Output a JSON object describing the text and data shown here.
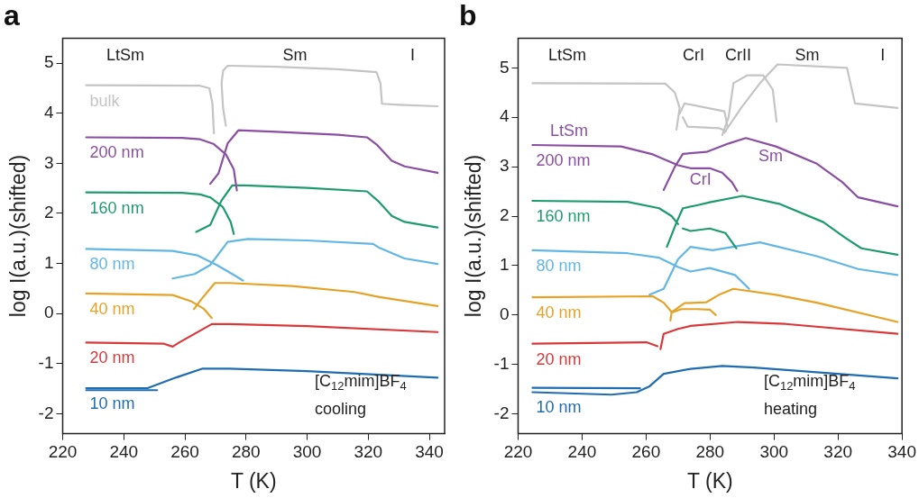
{
  "chart_data": [
    {
      "type": "line",
      "title": "a",
      "xlabel": "T (K)",
      "ylabel": "log I(a.u.)(shifted)",
      "xlim": [
        220,
        345
      ],
      "xticks": [
        220,
        240,
        260,
        280,
        300,
        320,
        340
      ],
      "ylim": [
        -2.4,
        5.5
      ],
      "yticks": [
        -2,
        -1,
        0,
        1,
        2,
        3,
        4,
        5
      ],
      "grid": false,
      "legend": false,
      "marker": "none",
      "line_style": "solid",
      "annotations": [
        "LtSm",
        "Sm",
        "I",
        "[C$_{12}$mim]BF$_{4}$",
        "cooling"
      ],
      "series": [
        {
          "name": "bulk",
          "color": "#c4c4c4",
          "x": [
            227.7,
            265,
            268,
            269,
            269.5
          ],
          "values": [
            4.56,
            4.55,
            4.5,
            4.2,
            3.6
          ]
        },
        {
          "color": "#c4c4c4",
          "x": [
            273.4,
            272.5,
            272,
            272.5,
            274,
            290,
            310,
            322.7,
            324,
            324.5,
            330,
            342.7
          ],
          "values": [
            3.75,
            4.1,
            4.6,
            4.85,
            4.95,
            4.93,
            4.88,
            4.82,
            4.6,
            4.19,
            4.17,
            4.14
          ]
        },
        {
          "name": "200 nm",
          "color": "#8a4fa3",
          "x": [
            227.7,
            259.1,
            265,
            269.3,
            273.4,
            276,
            277
          ],
          "values": [
            3.52,
            3.51,
            3.48,
            3.39,
            3.18,
            2.88,
            2.46
          ]
        },
        {
          "color": "#8a4fa3",
          "x": [
            268.3,
            271,
            274,
            277.5,
            290,
            310,
            319.6,
            322.7,
            327.7,
            331.9,
            342.7
          ],
          "values": [
            2.59,
            2.8,
            3.4,
            3.66,
            3.63,
            3.57,
            3.52,
            3.38,
            3.05,
            2.94,
            2.81
          ]
        },
        {
          "name": "160 nm",
          "color": "#1e9b6e",
          "x": [
            227.7,
            259.1,
            265,
            268.3,
            272.4,
            275,
            276
          ],
          "values": [
            2.42,
            2.41,
            2.38,
            2.32,
            2.13,
            1.83,
            1.59
          ]
        },
        {
          "color": "#1e9b6e",
          "x": [
            263.7,
            268.3,
            271.9,
            275.5,
            279.6,
            300,
            319.6,
            323.2,
            327.7,
            331.9,
            342.7
          ],
          "values": [
            1.63,
            1.77,
            2.25,
            2.56,
            2.56,
            2.51,
            2.44,
            2.25,
            1.95,
            1.83,
            1.72
          ]
        },
        {
          "name": "80 nm",
          "color": "#62b6e3",
          "x": [
            227.7,
            256,
            264.2,
            270.4,
            275.5,
            279
          ],
          "values": [
            1.29,
            1.25,
            1.16,
            0.97,
            0.79,
            0.66
          ]
        },
        {
          "color": "#62b6e3",
          "x": [
            256,
            263.2,
            268.3,
            274,
            280.6,
            300,
            321.6,
            323.7,
            331.9,
            342.7
          ],
          "values": [
            0.7,
            0.79,
            0.97,
            1.43,
            1.49,
            1.46,
            1.39,
            1.31,
            1.1,
            0.99
          ]
        },
        {
          "name": "40 nm",
          "color": "#e5a227",
          "x": [
            227.7,
            256,
            262.2,
            266.3,
            268.8
          ],
          "values": [
            0.4,
            0.37,
            0.24,
            0.09,
            -0.09
          ]
        },
        {
          "color": "#e5a227",
          "x": [
            263,
            265.2,
            269.8,
            274.5,
            295,
            315.5,
            323.7,
            342.7
          ],
          "values": [
            0.09,
            0.27,
            0.61,
            0.61,
            0.55,
            0.43,
            0.33,
            0.15
          ]
        },
        {
          "name": "20 nm",
          "color": "#d8383a",
          "x": [
            227.7,
            252.9,
            256,
            258.1,
            268.8,
            274.5,
            300,
            342.7
          ],
          "values": [
            -0.58,
            -0.6,
            -0.66,
            -0.58,
            -0.21,
            -0.21,
            -0.25,
            -0.37
          ]
        },
        {
          "name": "10 nm",
          "color": "#1f6db0",
          "x": [
            227.7,
            247.8,
            257,
            265.8,
            274.5,
            300,
            342.7
          ],
          "values": [
            -1.49,
            -1.49,
            -1.28,
            -1.1,
            -1.1,
            -1.15,
            -1.28
          ]
        },
        {
          "color": "#1f6db0",
          "x": [
            227.7,
            250.9
          ],
          "values": [
            -1.53,
            -1.53
          ]
        }
      ]
    },
    {
      "type": "line",
      "title": "b",
      "xlabel": "T (K)",
      "ylabel": "log I(a.u.)(shifted)",
      "xlim": [
        220,
        340
      ],
      "xticks": [
        220,
        240,
        260,
        280,
        300,
        320,
        340
      ],
      "ylim": [
        -2.4,
        5.6
      ],
      "yticks": [
        -2,
        -1,
        0,
        1,
        2,
        3,
        4,
        5
      ],
      "grid": false,
      "legend": false,
      "marker": "none",
      "line_style": "solid",
      "annotations": [
        "LtSm",
        "CrI",
        "CrII",
        "Sm",
        "I",
        "LtSm",
        "CrI",
        "Sm",
        "[C$_{12}$mim]BF$_{4}$",
        "heating"
      ],
      "series": [
        {
          "color": "#c4c4c4",
          "x": [
            224.5,
            266,
            269,
            270.5,
            269.5
          ],
          "values": [
            4.69,
            4.68,
            4.5,
            4.19,
            3.75
          ]
        },
        {
          "color": "#c4c4c4",
          "x": [
            270.5,
            272,
            284.5,
            285.5
          ],
          "values": [
            4.07,
            4.28,
            4.12,
            3.8
          ]
        },
        {
          "color": "#c4c4c4",
          "x": [
            271.5,
            273,
            282.8,
            285
          ],
          "values": [
            4.0,
            3.81,
            3.78,
            3.72
          ]
        },
        {
          "color": "#c4c4c4",
          "x": [
            283.8,
            285.8,
            287.3,
            291.7,
            296.6,
            299.6,
            300.8
          ],
          "values": [
            3.64,
            4.0,
            4.69,
            4.85,
            4.85,
            4.56,
            3.91
          ]
        },
        {
          "color": "#c4c4c4",
          "x": [
            284.5,
            289.7,
            295.6,
            301.1,
            322.8,
            325.3,
            338.6
          ],
          "values": [
            3.69,
            4.19,
            4.69,
            5.07,
            5.0,
            4.28,
            4.19
          ]
        },
        {
          "name": "200 nm",
          "color": "#8a4fa3",
          "x": [
            224.5,
            252.2,
            262.1,
            270,
            273.9,
            279.9,
            283.8,
            286.8,
            288.5
          ],
          "values": [
            3.44,
            3.41,
            3.25,
            3.03,
            2.97,
            2.97,
            2.88,
            2.69,
            2.51
          ]
        },
        {
          "color": "#8a4fa3",
          "x": [
            265.5,
            269,
            271.5,
            278.9,
            285.8,
            291.2,
            300.6,
            313.4,
            321.3,
            326.3,
            338.6
          ],
          "values": [
            2.53,
            3.0,
            3.26,
            3.3,
            3.47,
            3.58,
            3.41,
            3.06,
            2.69,
            2.38,
            2.2
          ]
        },
        {
          "name": "160 nm",
          "color": "#1e9b6e",
          "x": [
            224.5,
            254.2,
            264.1,
            268,
            270
          ],
          "values": [
            2.31,
            2.29,
            2.16,
            2.0,
            1.84
          ]
        },
        {
          "color": "#1e9b6e",
          "x": [
            266.5,
            269.5,
            271.5,
            275.9,
            279.9,
            290.2,
            301.6,
            315.4,
            322.3,
            327.3,
            338.6
          ],
          "values": [
            1.38,
            1.87,
            2.16,
            2.22,
            2.28,
            2.41,
            2.25,
            1.88,
            1.56,
            1.35,
            1.22
          ]
        },
        {
          "color": "#1e9b6e",
          "x": [
            271.5,
            273.9,
            279.9,
            284.8,
            288.2
          ],
          "values": [
            1.75,
            1.7,
            1.75,
            1.66,
            1.35
          ]
        },
        {
          "name": "80 nm",
          "color": "#62b6e3",
          "x": [
            224.5,
            254.2,
            264.1,
            270,
            273.9,
            279.9,
            287.8,
            292.2
          ],
          "values": [
            1.31,
            1.25,
            1.16,
            0.97,
            0.88,
            0.95,
            0.81,
            0.53
          ]
        },
        {
          "color": "#62b6e3",
          "x": [
            261.1,
            265.5,
            270,
            273.9,
            280.8,
            295.6,
            313.4,
            326.3,
            338.6
          ],
          "values": [
            0.41,
            0.53,
            1.13,
            1.38,
            1.31,
            1.47,
            1.19,
            0.93,
            0.81
          ]
        },
        {
          "name": "40 nm",
          "color": "#e5a227",
          "x": [
            224.5,
            262.1,
            265.5,
            268,
            267.6
          ],
          "values": [
            0.36,
            0.38,
            0.25,
            0.06,
            -0.11
          ]
        },
        {
          "color": "#e5a227",
          "x": [
            268,
            272,
            278.9,
            282.8,
            287.3,
            300.6,
            313.4,
            338.6
          ],
          "values": [
            0.06,
            0.24,
            0.26,
            0.41,
            0.53,
            0.41,
            0.25,
            -0.14
          ]
        },
        {
          "color": "#e5a227",
          "x": [
            268.5,
            271,
            276,
            279.9,
            281.8
          ],
          "values": [
            0.06,
            0.12,
            0.12,
            0.11,
            0.0
          ]
        },
        {
          "name": "20 nm",
          "color": "#d8383a",
          "x": [
            224.5,
            260.1,
            263.6
          ],
          "values": [
            -0.58,
            -0.55,
            -0.63
          ]
        },
        {
          "color": "#d8383a",
          "x": [
            264.5,
            265.5,
            270,
            273.9,
            288.7,
            303.6,
            338.6
          ],
          "values": [
            -0.69,
            -0.38,
            -0.28,
            -0.22,
            -0.14,
            -0.18,
            -0.38
          ]
        },
        {
          "color": "#1f6db0",
          "x": [
            224.5,
            258.1
          ],
          "values": [
            -1.47,
            -1.48
          ]
        },
        {
          "name": "10 nm",
          "color": "#1f6db0",
          "x": [
            224.5,
            249.2,
            257.1,
            261.1,
            265.5,
            273.9,
            283.8,
            293.7,
            338.6
          ],
          "values": [
            -1.56,
            -1.61,
            -1.56,
            -1.44,
            -1.19,
            -1.09,
            -1.03,
            -1.06,
            -1.28
          ]
        }
      ]
    }
  ]
}
